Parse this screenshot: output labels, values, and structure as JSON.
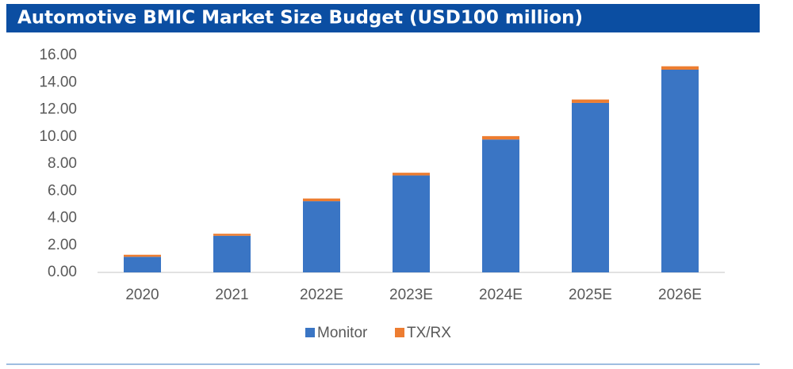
{
  "chart_data": {
    "type": "stacked_bar",
    "title": "Automotive BMIC Market Size Budget (USD100 million)",
    "categories": [
      "2020",
      "2021",
      "2022E",
      "2023E",
      "2024E",
      "2025E",
      "2026E"
    ],
    "series": [
      {
        "name": "Monitor",
        "color": "#3a75c4",
        "values": [
          1.15,
          2.7,
          5.25,
          7.15,
          9.8,
          12.5,
          14.95
        ]
      },
      {
        "name": "TX/RX",
        "color": "#ed7d31",
        "values": [
          0.15,
          0.15,
          0.2,
          0.2,
          0.25,
          0.25,
          0.25
        ]
      }
    ],
    "ylim": [
      0,
      16
    ],
    "yticks": [
      {
        "value": 0,
        "label": "0.00"
      },
      {
        "value": 2,
        "label": "2.00"
      },
      {
        "value": 4,
        "label": "4.00"
      },
      {
        "value": 6,
        "label": "6.00"
      },
      {
        "value": 8,
        "label": "8.00"
      },
      {
        "value": 10,
        "label": "10.00"
      },
      {
        "value": 12,
        "label": "12.00"
      },
      {
        "value": 14,
        "label": "14.00"
      },
      {
        "value": 16,
        "label": "16.00"
      }
    ],
    "grid": false
  }
}
